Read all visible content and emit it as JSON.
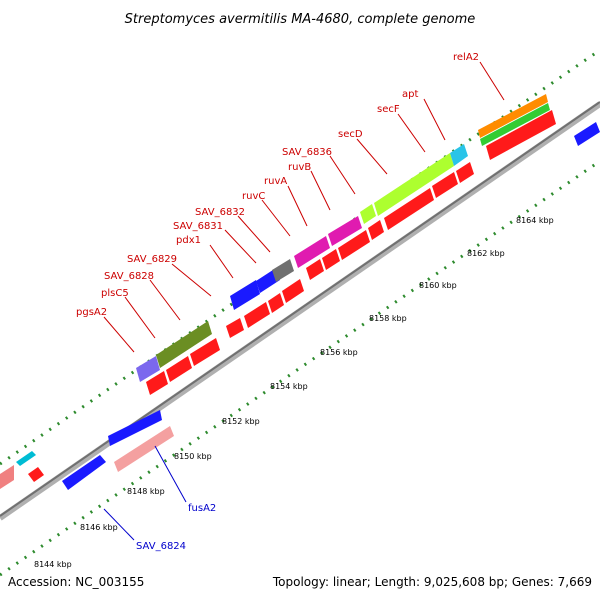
{
  "title": "Streptomyces avermitilis MA-4680, complete genome",
  "footer": {
    "accession": "Accession: NC_003155",
    "summary": "Topology: linear; Length: 9,025,608 bp; Genes: 7,669"
  },
  "colors": {
    "backbone": "#808080",
    "tick": "#2e8b2e",
    "label_red": "#cc0000",
    "label_blue": "#0000cc"
  },
  "scale_labels": [
    "8144 kbp",
    "8146 kbp",
    "8148 kbp",
    "8150 kbp",
    "8152 kbp",
    "8154 kbp",
    "8156 kbp",
    "8158 kbp",
    "8160 kbp",
    "8162 kbp",
    "8164 kbp"
  ],
  "gene_labels_top": [
    "pgsA2",
    "plsC5",
    "SAV_6828",
    "SAV_6829",
    "pdx1",
    "SAV_6831",
    "SAV_6832",
    "ruvC",
    "ruvA",
    "ruvB",
    "SAV_6836",
    "secD",
    "secF",
    "apt",
    "relA2"
  ],
  "gene_labels_bottom": [
    "fusA2",
    "SAV_6824"
  ]
}
